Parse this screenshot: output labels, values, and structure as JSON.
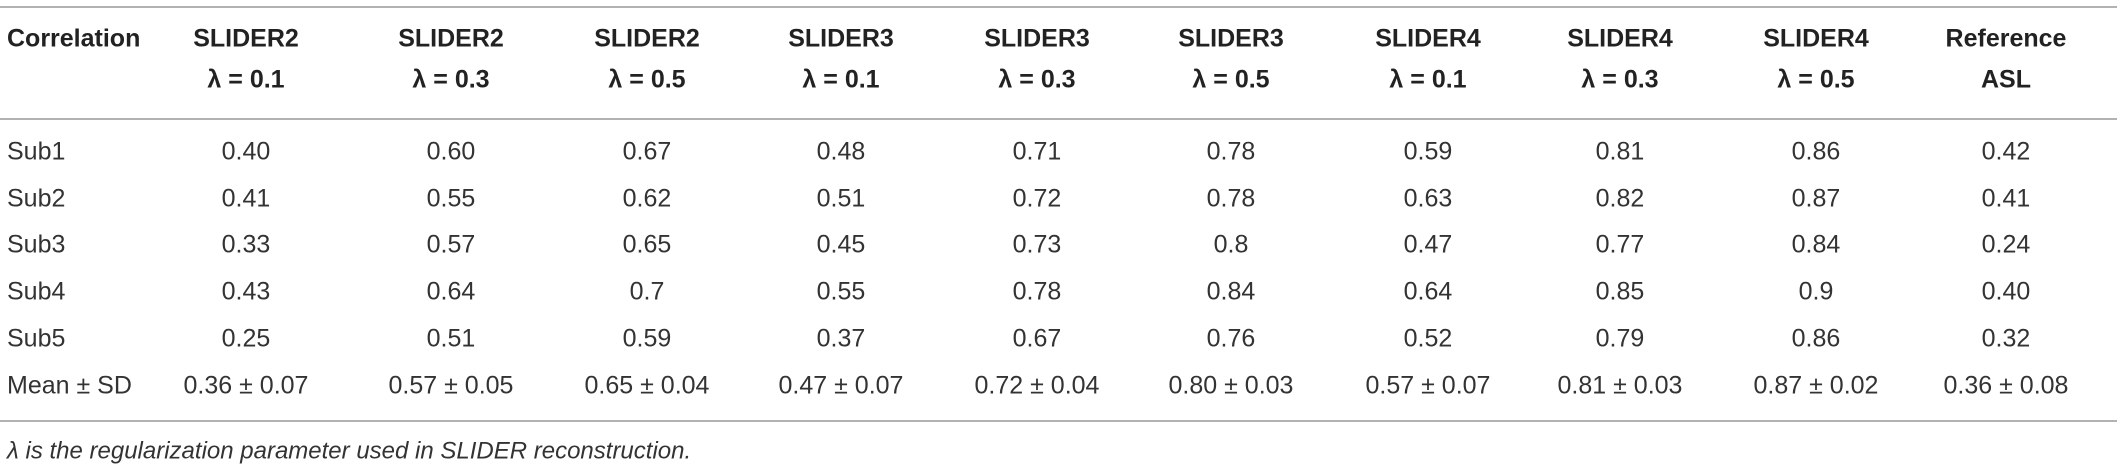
{
  "table": {
    "header": [
      [
        "Correlation"
      ],
      [
        "SLIDER2",
        "λ = 0.1"
      ],
      [
        "SLIDER2",
        "λ = 0.3"
      ],
      [
        "SLIDER2",
        "λ = 0.5"
      ],
      [
        "SLIDER3",
        "λ = 0.1"
      ],
      [
        "SLIDER3",
        "λ = 0.3"
      ],
      [
        "SLIDER3",
        "λ = 0.5"
      ],
      [
        "SLIDER4",
        "λ = 0.1"
      ],
      [
        "SLIDER4",
        "λ = 0.3"
      ],
      [
        "SLIDER4",
        "λ = 0.5"
      ],
      [
        "Reference",
        "ASL"
      ]
    ],
    "rows": [
      [
        "Sub1",
        "0.40",
        "0.60",
        "0.67",
        "0.48",
        "0.71",
        "0.78",
        "0.59",
        "0.81",
        "0.86",
        "0.42"
      ],
      [
        "Sub2",
        "0.41",
        "0.55",
        "0.62",
        "0.51",
        "0.72",
        "0.78",
        "0.63",
        "0.82",
        "0.87",
        "0.41"
      ],
      [
        "Sub3",
        "0.33",
        "0.57",
        "0.65",
        "0.45",
        "0.73",
        "0.8",
        "0.47",
        "0.77",
        "0.84",
        "0.24"
      ],
      [
        "Sub4",
        "0.43",
        "0.64",
        "0.7",
        "0.55",
        "0.78",
        "0.84",
        "0.64",
        "0.85",
        "0.9",
        "0.40"
      ],
      [
        "Sub5",
        "0.25",
        "0.51",
        "0.59",
        "0.37",
        "0.67",
        "0.76",
        "0.52",
        "0.79",
        "0.86",
        "0.32"
      ],
      [
        "Mean ± SD",
        "0.36 ± 0.07",
        "0.57 ± 0.05",
        "0.65 ± 0.04",
        "0.47 ± 0.07",
        "0.72 ± 0.04",
        "0.80 ± 0.03",
        "0.57 ± 0.07",
        "0.81 ± 0.03",
        "0.87 ± 0.02",
        "0.36 ± 0.08"
      ]
    ],
    "footnote": "λ is the regularization parameter used in SLIDER reconstruction."
  }
}
